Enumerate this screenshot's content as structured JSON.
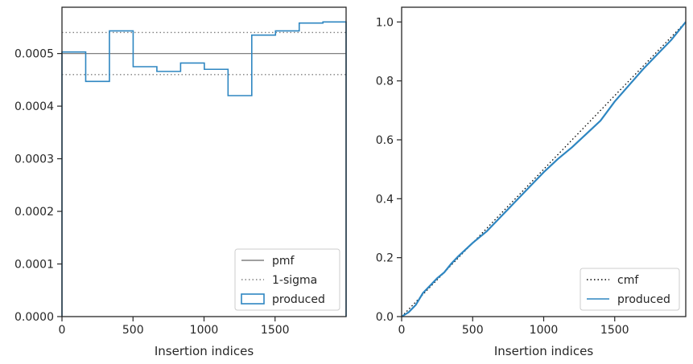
{
  "chart_data": [
    {
      "type": "line",
      "xlabel": "Insertion indices",
      "ylabel": "",
      "xlim": [
        0,
        2000
      ],
      "ylim": [
        0,
        0.000588
      ],
      "x_ticks": [
        0,
        500,
        1000,
        1500
      ],
      "x_tick_labels": [
        "0",
        "500",
        "1000",
        "1500"
      ],
      "y_ticks": [
        0,
        0.0001,
        0.0002,
        0.0003,
        0.0004,
        0.0005
      ],
      "y_tick_labels": [
        "0.0000",
        "0.0001",
        "0.0002",
        "0.0003",
        "0.0004",
        "0.0005"
      ],
      "legend_position": "lower-right",
      "series": [
        {
          "name": "pmf",
          "style": "solid",
          "color": "#808080",
          "x": [
            0,
            2000
          ],
          "values": [
            0.0005,
            0.0005
          ]
        },
        {
          "name": "1-sigma",
          "style": "dotted",
          "color": "#808080",
          "x": [
            0,
            2000
          ],
          "values": [
            0.00054,
            0.00054
          ]
        },
        {
          "name": "",
          "style": "dotted",
          "color": "#808080",
          "x": [
            0,
            2000
          ],
          "values": [
            0.00046,
            0.00046
          ]
        },
        {
          "name": "produced",
          "style": "step-histogram",
          "color": "#2e86c1",
          "bin_edges": [
            0,
            167,
            334,
            501,
            668,
            835,
            1002,
            1169,
            1336,
            1503,
            1670,
            1837,
            2000
          ],
          "values": [
            0.000503,
            0.000447,
            0.000543,
            0.000475,
            0.000466,
            0.000482,
            0.00047,
            0.00042,
            0.000535,
            0.000543,
            0.000558,
            0.00056
          ]
        }
      ]
    },
    {
      "type": "line",
      "xlabel": "Insertion indices",
      "ylabel": "",
      "xlim": [
        0,
        2000
      ],
      "ylim": [
        0,
        1.05
      ],
      "x_ticks": [
        0,
        500,
        1000,
        1500
      ],
      "x_tick_labels": [
        "0",
        "500",
        "1000",
        "1500"
      ],
      "y_ticks": [
        0,
        0.2,
        0.4,
        0.6,
        0.8,
        1.0
      ],
      "y_tick_labels": [
        "0.0",
        "0.2",
        "0.4",
        "0.6",
        "0.8",
        "1.0"
      ],
      "legend_position": "lower-right",
      "series": [
        {
          "name": "cmf",
          "style": "dotted",
          "color": "#000000",
          "x": [
            0,
            2000
          ],
          "values": [
            0,
            1
          ]
        },
        {
          "name": "produced",
          "style": "line",
          "color": "#2e86c1",
          "x": [
            0,
            50,
            100,
            150,
            200,
            250,
            300,
            350,
            400,
            500,
            600,
            700,
            800,
            900,
            1000,
            1100,
            1200,
            1300,
            1400,
            1500,
            1600,
            1700,
            1800,
            1900,
            2000
          ],
          "values": [
            0,
            0.015,
            0.04,
            0.08,
            0.105,
            0.13,
            0.15,
            0.18,
            0.205,
            0.25,
            0.29,
            0.34,
            0.39,
            0.44,
            0.49,
            0.535,
            0.575,
            0.62,
            0.665,
            0.73,
            0.785,
            0.84,
            0.89,
            0.94,
            1.0
          ]
        }
      ]
    }
  ]
}
